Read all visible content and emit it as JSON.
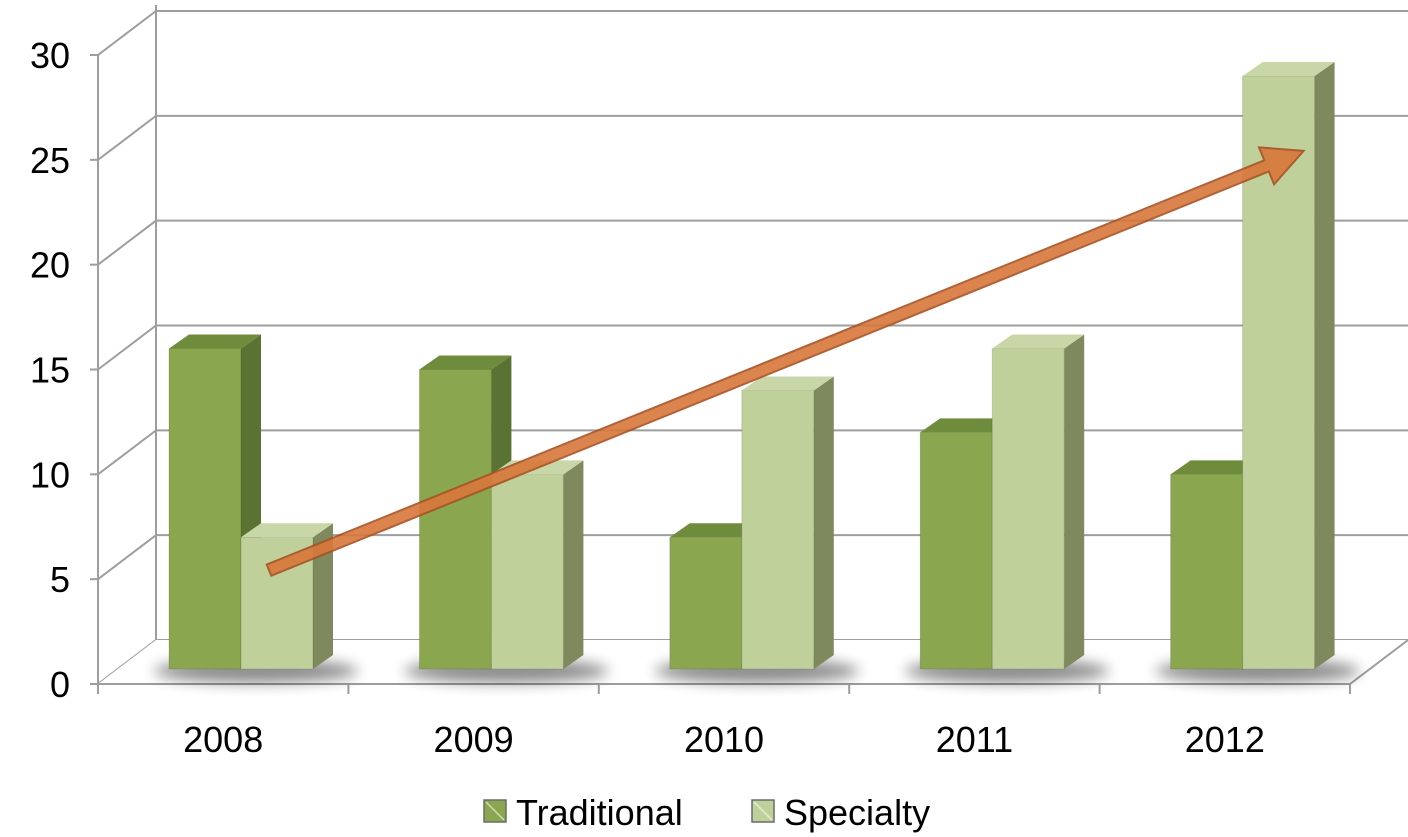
{
  "chart_data": {
    "type": "bar",
    "style": "3d-clustered-column",
    "title": "",
    "xlabel": "",
    "ylabel": "",
    "categories": [
      "2008",
      "2009",
      "2010",
      "2011",
      "2012"
    ],
    "series": [
      {
        "name": "Traditional",
        "values": [
          16,
          15,
          7,
          12,
          10
        ]
      },
      {
        "name": "Specialty",
        "values": [
          7,
          10,
          14,
          16,
          29
        ]
      }
    ],
    "ylim": [
      0,
      30
    ],
    "yticks": [
      "0",
      "5",
      "10",
      "15",
      "20",
      "25",
      "30"
    ],
    "grid": true,
    "legend": "bottom",
    "trend_arrow": {
      "from": {
        "x": "2008",
        "y": 5
      },
      "to": {
        "x": "2012",
        "y": 26
      }
    },
    "colors": {
      "traditional_front": "#8aa74f",
      "traditional_side": "#5a7232",
      "traditional_top": "#6f8c3d",
      "specialty_front": "#bfd09a",
      "specialty_side": "#7e8a5e",
      "specialty_top": "#c9d7a8",
      "grid": "#9e9e9e",
      "arrow": "#d9773a"
    }
  }
}
